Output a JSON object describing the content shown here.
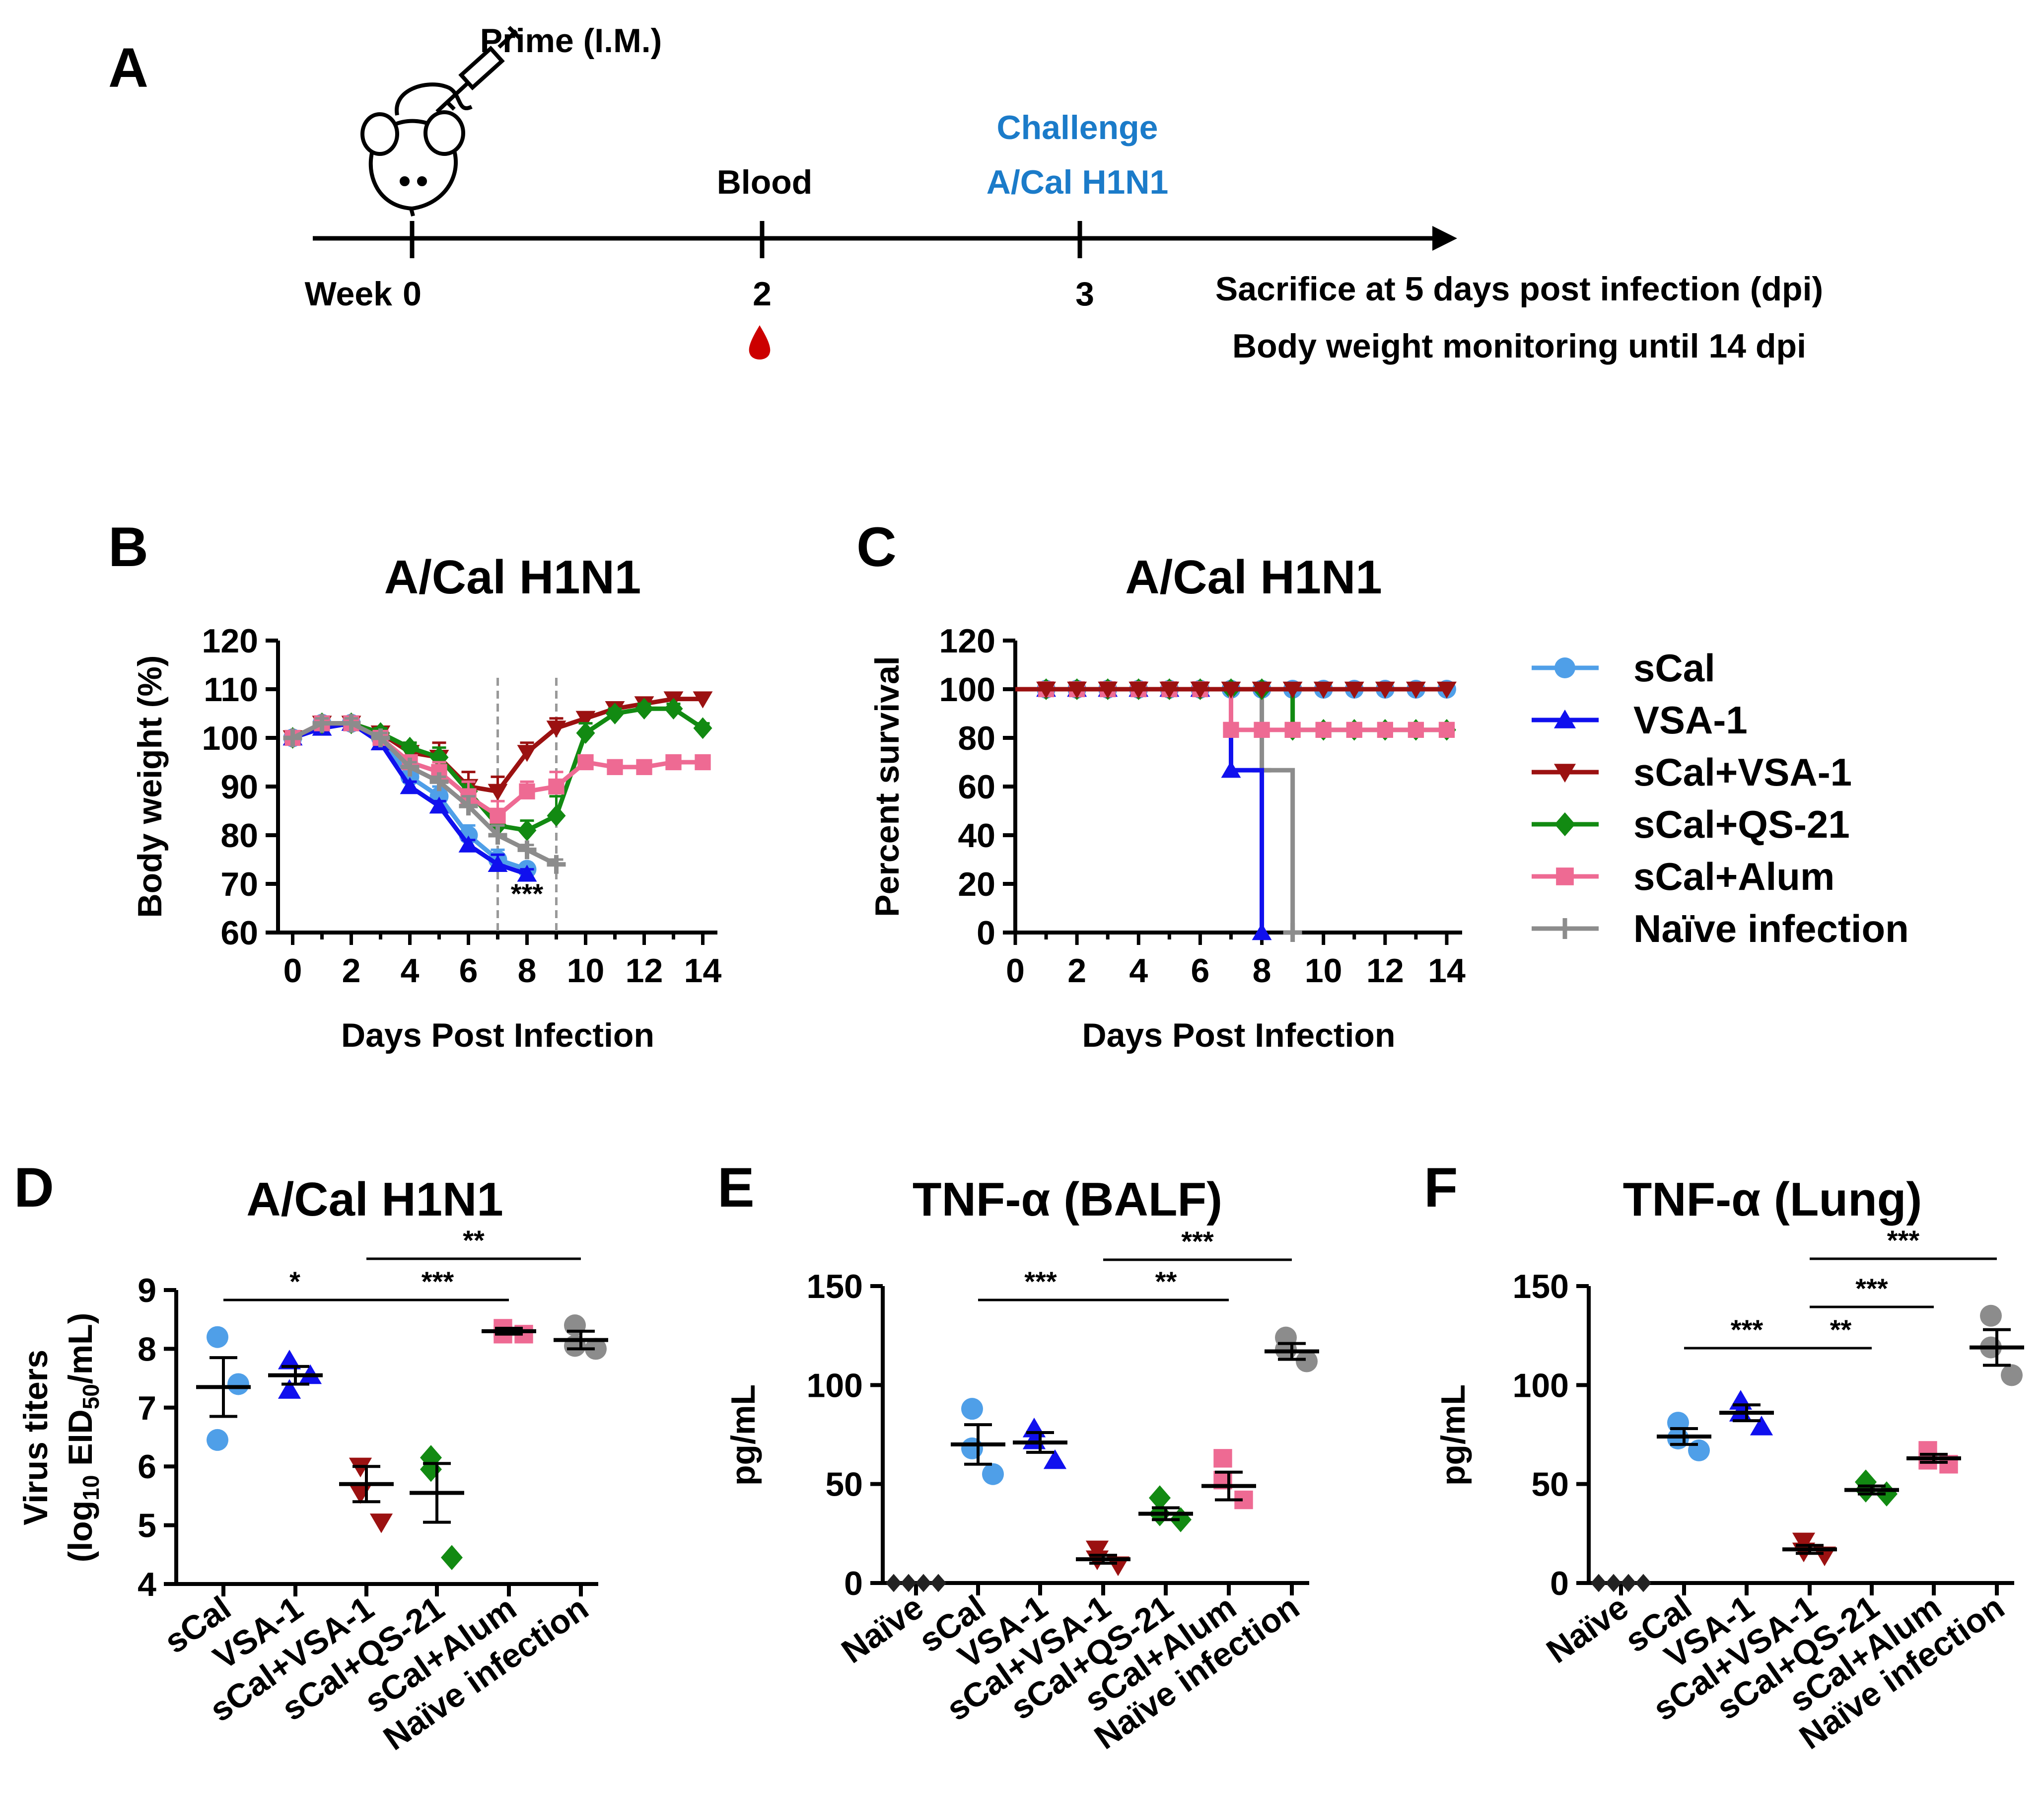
{
  "colors": {
    "sCal": "#4f9fe8",
    "VSA-1": "#1010ee",
    "sCal+VSA-1": "#9b1111",
    "sCal+QS-21": "#128a12",
    "sCal+Alum": "#ee6a93",
    "Naive infection": "#8c8c8c",
    "Naive": "#222222",
    "challenge": "#1b7bc9",
    "blood": "#cc0000"
  },
  "panel_labels": {
    "a": "A",
    "b": "B",
    "c": "C",
    "d": "D",
    "e": "E",
    "f": "F"
  },
  "timeline": {
    "prime": "Prime (I.M.)",
    "blood": "Blood",
    "challenge_line1": "Challenge",
    "challenge_line2": "A/Cal H1N1",
    "week_word": "Week",
    "week0": "0",
    "week2": "2",
    "week3": "3",
    "note1": "Sacrifice at 5 days post infection (dpi)",
    "note2": "Body weight monitoring until 14 dpi",
    "mouse_icon": "mouse-icon",
    "syringe_icon": "syringe-icon",
    "blood_drop_icon": "blood-drop-icon"
  },
  "legend": [
    "sCal",
    "VSA-1",
    "sCal+VSA-1",
    "sCal+QS-21",
    "sCal+Alum",
    "Naïve infection"
  ],
  "chart_data": [
    {
      "id": "B",
      "type": "line",
      "title": "A/Cal H1N1",
      "xlabel": "Days Post Infection",
      "ylabel": "Body weight (%)",
      "xlim": [
        -0.5,
        14.5
      ],
      "ylim": [
        60,
        120
      ],
      "xticks": [
        0,
        2,
        4,
        6,
        8,
        10,
        12,
        14
      ],
      "yticks": [
        60,
        70,
        80,
        90,
        100,
        110,
        120
      ],
      "vlines": [
        7,
        9
      ],
      "annotation": {
        "text": "***",
        "x": 8,
        "y": 66
      },
      "series": [
        {
          "name": "sCal",
          "x": [
            0,
            1,
            2,
            3,
            4,
            5,
            6,
            7,
            8
          ],
          "values": [
            100,
            103,
            103,
            100,
            92,
            88,
            80,
            75,
            73
          ],
          "err": [
            0,
            1,
            1,
            1,
            1,
            2,
            2,
            2,
            1
          ]
        },
        {
          "name": "VSA-1",
          "x": [
            0,
            1,
            2,
            3,
            4,
            5,
            6,
            7,
            8
          ],
          "values": [
            100,
            102,
            103,
            99,
            90,
            86,
            78,
            74,
            72
          ],
          "err": [
            0,
            1,
            1,
            1,
            1,
            1,
            1,
            2,
            1
          ]
        },
        {
          "name": "sCal+VSA-1",
          "x": [
            0,
            1,
            2,
            3,
            4,
            5,
            6,
            7,
            8,
            9,
            10,
            11,
            12,
            13,
            14
          ],
          "values": [
            100,
            103,
            103,
            101,
            97,
            96,
            90,
            89,
            97,
            102,
            104,
            106,
            107,
            108,
            108
          ],
          "err": [
            0,
            1,
            1,
            1,
            2,
            3,
            3,
            3,
            2,
            2,
            1,
            1,
            1,
            1,
            1
          ]
        },
        {
          "name": "sCal+QS-21",
          "x": [
            0,
            1,
            2,
            3,
            4,
            5,
            6,
            7,
            8,
            9,
            10,
            11,
            12,
            13,
            14
          ],
          "values": [
            100,
            103,
            103,
            101,
            98,
            96,
            89,
            82,
            81,
            84,
            101,
            105,
            106,
            106,
            102
          ],
          "err": [
            0,
            1,
            1,
            1,
            1,
            2,
            2,
            2,
            2,
            4,
            2,
            1,
            1,
            1,
            1
          ]
        },
        {
          "name": "sCal+Alum",
          "x": [
            0,
            1,
            2,
            3,
            4,
            5,
            6,
            7,
            8,
            9,
            10,
            11,
            12,
            13,
            14
          ],
          "values": [
            100,
            103,
            103,
            100,
            95,
            93,
            88,
            84,
            89,
            90,
            95,
            94,
            94,
            95,
            95
          ],
          "err": [
            0,
            1,
            1,
            1,
            1,
            2,
            3,
            3,
            2,
            3,
            1,
            1,
            1,
            1,
            1
          ]
        },
        {
          "name": "Naïve infection",
          "x": [
            0,
            1,
            2,
            3,
            4,
            5,
            6,
            7,
            8,
            9
          ],
          "values": [
            100,
            103,
            103,
            100,
            94,
            91,
            86,
            80,
            77,
            74
          ],
          "err": [
            0,
            1,
            1,
            1,
            1,
            1,
            2,
            2,
            1,
            1
          ]
        }
      ]
    },
    {
      "id": "C",
      "type": "line",
      "title": "A/Cal H1N1",
      "xlabel": "Days Post Infection",
      "ylabel": "Percent survival",
      "xlim": [
        0,
        14.5
      ],
      "ylim": [
        0,
        120
      ],
      "xticks": [
        0,
        2,
        4,
        6,
        8,
        10,
        12,
        14
      ],
      "yticks": [
        0,
        20,
        40,
        60,
        80,
        100,
        120
      ],
      "series": [
        {
          "name": "sCal",
          "steps": [
            [
              0,
              100
            ],
            [
              7,
              100
            ]
          ]
        },
        {
          "name": "VSA-1",
          "steps": [
            [
              0,
              100
            ],
            [
              7,
              66.7
            ],
            [
              8,
              0
            ]
          ]
        },
        {
          "name": "sCal+VSA-1",
          "steps": [
            [
              0,
              100
            ],
            [
              14,
              100
            ]
          ]
        },
        {
          "name": "sCal+QS-21",
          "steps": [
            [
              0,
              100
            ],
            [
              9,
              83.3
            ],
            [
              14,
              83.3
            ]
          ]
        },
        {
          "name": "sCal+Alum",
          "steps": [
            [
              0,
              100
            ],
            [
              7,
              83.3
            ],
            [
              14,
              83.3
            ]
          ]
        },
        {
          "name": "Naïve infection",
          "steps": [
            [
              0,
              100
            ],
            [
              8,
              66.7
            ],
            [
              9,
              0
            ]
          ]
        }
      ]
    },
    {
      "id": "D",
      "type": "scatter",
      "title": "A/Cal H1N1",
      "ylabel_line1": "Virus titers",
      "ylabel_line2_pre": "(log",
      "ylabel_line2_sub1": "10",
      "ylabel_line2_mid": " EID",
      "ylabel_line2_sub2": "50",
      "ylabel_line2_post": "/mL)",
      "ylim": [
        4,
        9
      ],
      "yticks": [
        4,
        5,
        6,
        7,
        8,
        9
      ],
      "categories": [
        "sCal",
        "VSA-1",
        "sCal+VSA-1",
        "sCal+QS-21",
        "sCal+Alum",
        "Naïve infection"
      ],
      "series": [
        {
          "name": "sCal",
          "points": [
            8.2,
            6.45,
            7.4
          ],
          "mean": 7.35,
          "sem": 0.5
        },
        {
          "name": "VSA-1",
          "points": [
            7.8,
            7.3,
            7.55
          ],
          "mean": 7.55,
          "sem": 0.15
        },
        {
          "name": "sCal+VSA-1",
          "points": [
            6.0,
            5.55,
            5.05
          ],
          "mean": 5.7,
          "sem": 0.3
        },
        {
          "name": "sCal+QS-21",
          "points": [
            6.15,
            5.95,
            4.45
          ],
          "mean": 5.55,
          "sem": 0.5
        },
        {
          "name": "sCal+Alum",
          "points": [
            8.35,
            8.25,
            8.25
          ],
          "mean": 8.3,
          "sem": 0.05
        },
        {
          "name": "Naïve infection",
          "points": [
            8.4,
            8.05,
            8.0
          ],
          "mean": 8.15,
          "sem": 0.15
        }
      ],
      "significance": [
        {
          "from": 0,
          "to": 2,
          "label": "*"
        },
        {
          "from": 2,
          "to": 4,
          "label": "***"
        },
        {
          "from": 2,
          "to": 5,
          "label": "**"
        }
      ]
    },
    {
      "id": "E",
      "type": "scatter",
      "title": "TNF-α (BALF)",
      "ylabel": "pg/mL",
      "ylim": [
        0,
        150
      ],
      "yticks": [
        0,
        50,
        100,
        150
      ],
      "categories": [
        "Naïve",
        "sCal",
        "VSA-1",
        "sCal+VSA-1",
        "sCal+QS-21",
        "sCal+Alum",
        "Naïve infection"
      ],
      "series": [
        {
          "name": "Naïve",
          "points": [
            0,
            0,
            0
          ],
          "mean": 0,
          "sem": 0
        },
        {
          "name": "sCal",
          "points": [
            88,
            68,
            55
          ],
          "mean": 70,
          "sem": 10
        },
        {
          "name": "VSA-1",
          "points": [
            78,
            72,
            62
          ],
          "mean": 71,
          "sem": 5
        },
        {
          "name": "sCal+VSA-1",
          "points": [
            17,
            12,
            9
          ],
          "mean": 12,
          "sem": 2
        },
        {
          "name": "sCal+QS-21",
          "points": [
            43,
            35,
            32
          ],
          "mean": 35,
          "sem": 3
        },
        {
          "name": "sCal+Alum",
          "points": [
            63,
            52,
            42
          ],
          "mean": 49,
          "sem": 7
        },
        {
          "name": "Naïve infection",
          "points": [
            124,
            118,
            112
          ],
          "mean": 117,
          "sem": 4
        }
      ],
      "significance": [
        {
          "from": 1,
          "to": 3,
          "label": "***"
        },
        {
          "from": 3,
          "to": 5,
          "label": "**"
        },
        {
          "from": 3,
          "to": 6,
          "label": "***"
        }
      ]
    },
    {
      "id": "F",
      "type": "scatter",
      "title": "TNF-α (Lung)",
      "ylabel": "pg/mL",
      "ylim": [
        0,
        150
      ],
      "yticks": [
        0,
        50,
        100,
        150
      ],
      "categories": [
        "Naïve",
        "sCal",
        "VSA-1",
        "sCal+VSA-1",
        "sCal+QS-21",
        "sCal+Alum",
        "Naïve infection"
      ],
      "series": [
        {
          "name": "Naïve",
          "points": [
            0,
            0,
            0
          ],
          "mean": 0,
          "sem": 0
        },
        {
          "name": "sCal",
          "points": [
            81,
            73,
            67
          ],
          "mean": 74,
          "sem": 4
        },
        {
          "name": "VSA-1",
          "points": [
            92,
            86,
            79
          ],
          "mean": 86,
          "sem": 4
        },
        {
          "name": "sCal+VSA-1",
          "points": [
            21,
            16,
            14
          ],
          "mean": 17,
          "sem": 2
        },
        {
          "name": "sCal+QS-21",
          "points": [
            51,
            47,
            45
          ],
          "mean": 47,
          "sem": 2
        },
        {
          "name": "sCal+Alum",
          "points": [
            67,
            62,
            60
          ],
          "mean": 63,
          "sem": 2
        },
        {
          "name": "Naïve infection",
          "points": [
            135,
            119,
            105
          ],
          "mean": 119,
          "sem": 9
        }
      ],
      "significance": [
        {
          "from": 1,
          "to": 3,
          "label": "***"
        },
        {
          "from": 3,
          "to": 4,
          "label": "**"
        },
        {
          "from": 3,
          "to": 5,
          "label": "***"
        },
        {
          "from": 3,
          "to": 6,
          "label": "***"
        }
      ]
    }
  ]
}
